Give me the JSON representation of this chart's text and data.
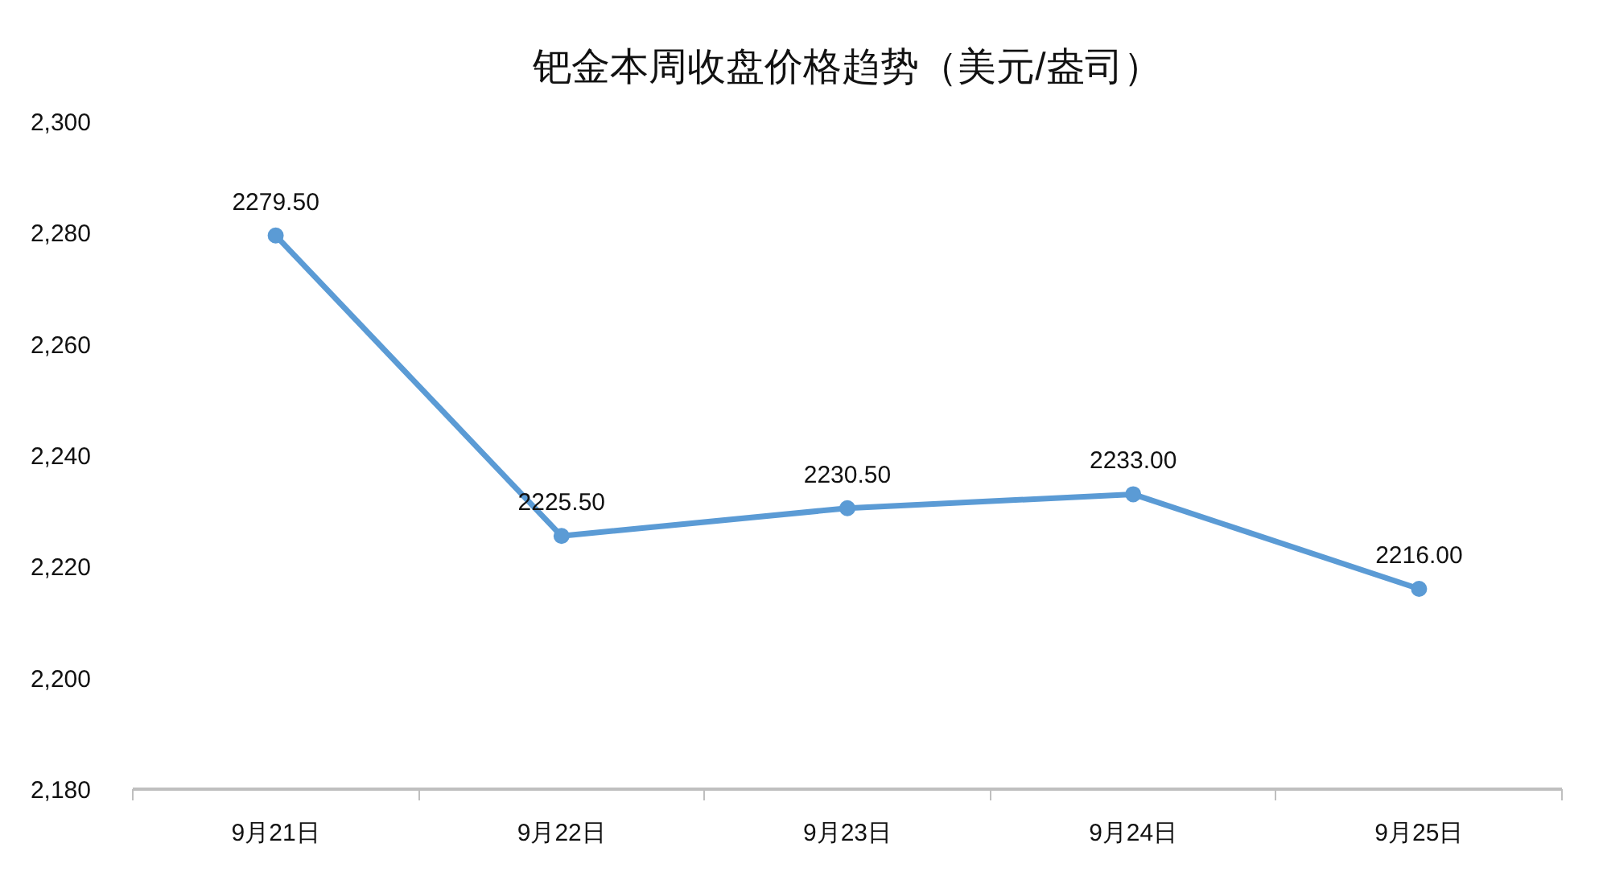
{
  "chart_data": {
    "type": "line",
    "title": "钯金本周收盘价格趋势（美元/盎司）",
    "categories": [
      "9月21日",
      "9月22日",
      "9月23日",
      "9月24日",
      "9月25日"
    ],
    "series": [
      {
        "color": "#5b9bd5",
        "values": [
          2279.5,
          2225.5,
          2230.5,
          2233.0,
          2216.0
        ],
        "value_labels": [
          "2279.50",
          "2225.50",
          "2230.50",
          "2233.00",
          "2216.00"
        ]
      }
    ],
    "ylim": [
      2180,
      2300
    ],
    "yticks": [
      {
        "value": 2180,
        "label": "2,180"
      },
      {
        "value": 2200,
        "label": "2,200"
      },
      {
        "value": 2220,
        "label": "2,220"
      },
      {
        "value": 2240,
        "label": "2,240"
      },
      {
        "value": 2260,
        "label": "2,260"
      },
      {
        "value": 2280,
        "label": "2,280"
      },
      {
        "value": 2300,
        "label": "2,300"
      }
    ],
    "marker": "circle",
    "line_style": "solid",
    "grid": false
  }
}
